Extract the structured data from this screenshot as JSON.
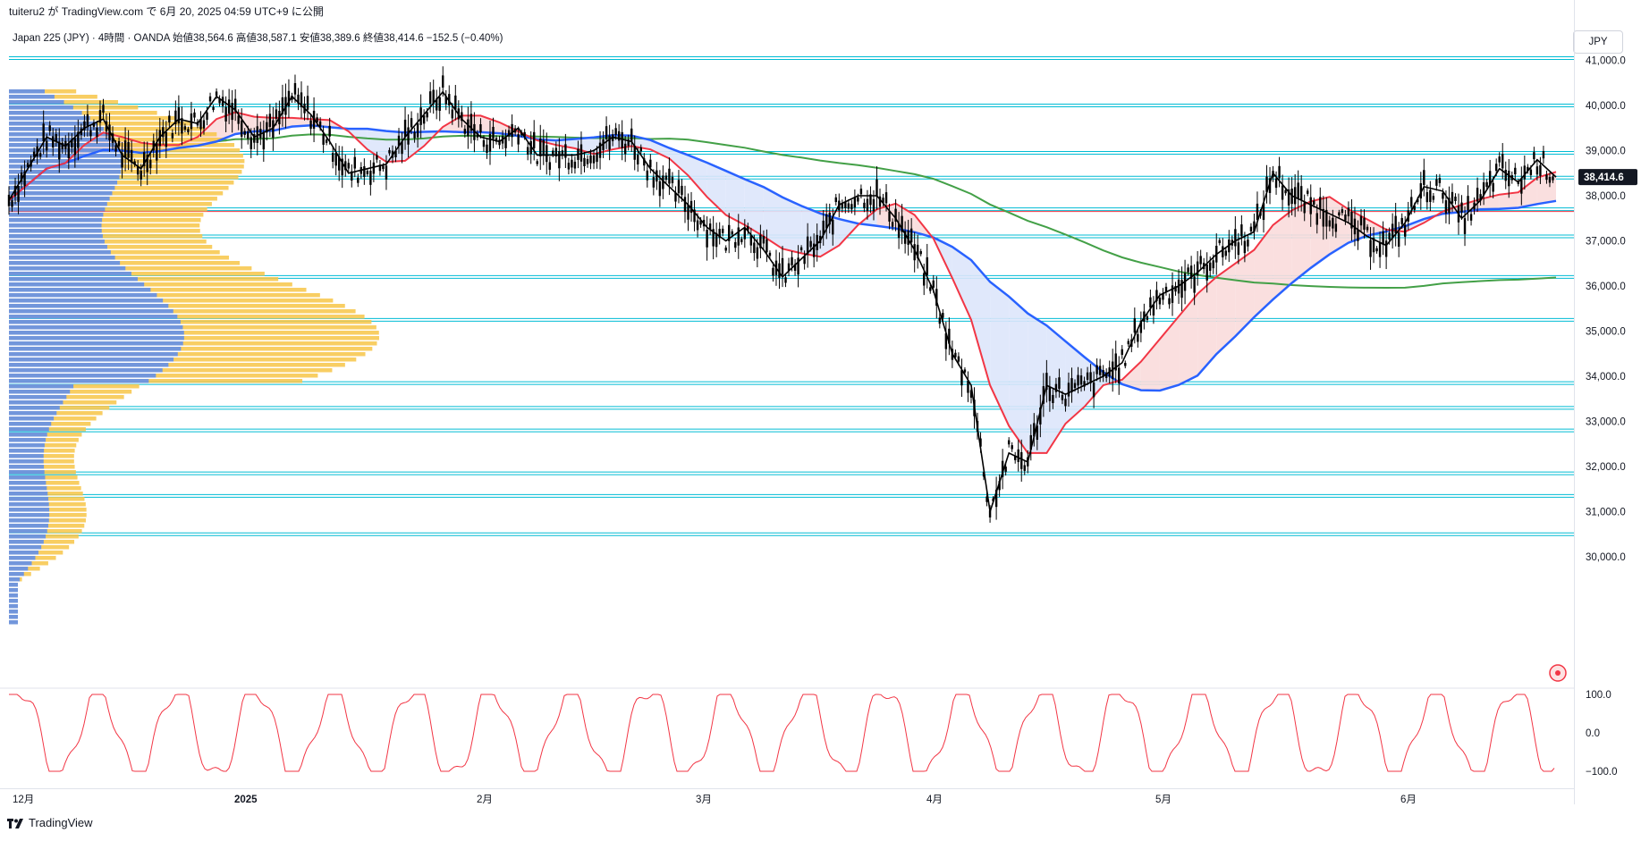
{
  "header": {
    "publish_text": "tuiteru2 が TradingView.com で 6月 20, 2025 04:59 UTC+9 に公開"
  },
  "legend": {
    "text": "Japan 225 (JPY) · 4時間 · OANDA  始値38,564.6  高値38,587.1  安値38,389.6  終値38,414.6  −152.5 (−0.40%)"
  },
  "currency_button": "JPY",
  "price_axis": {
    "labels": [
      "41,000.0",
      "40,000.0",
      "39,000.0",
      "38,000.0",
      "37,000.0",
      "36,000.0",
      "35,000.0",
      "34,000.0",
      "33,000.0",
      "32,000.0",
      "31,000.0",
      "30,000.0"
    ],
    "last_price_label": "38,414.6"
  },
  "oscillator_axis": {
    "labels": [
      "100.0",
      "0.0",
      "−100.0"
    ]
  },
  "time_axis": {
    "labels": [
      "12月",
      "2025",
      "2月",
      "3月",
      "4月",
      "5月",
      "6月"
    ]
  },
  "footer": {
    "brand": "TradingView"
  },
  "colors": {
    "candles": "#000000",
    "ma_fast": "#f23645",
    "ma_mid": "#2962ff",
    "ma_slow": "#43a047",
    "horizontal_levels": "#00bcd4",
    "volume_profile_up": "#5b8cf0",
    "volume_profile_down": "#f7c548",
    "poc_line": "#f23645",
    "oscillator": "#f23645",
    "fill_red": "#fadcdc",
    "fill_blue": "#dde6fb"
  },
  "chart_data": {
    "type": "line",
    "instrument": "Japan 225 (JPY)",
    "timeframe": "4時間",
    "source": "OANDA",
    "ohlc_last": {
      "open": 38564.6,
      "high": 38587.1,
      "low": 38389.6,
      "close": 38414.6,
      "change": -152.5,
      "change_pct": -0.4
    },
    "ylim": [
      29500,
      41300
    ],
    "x_ticks": [
      "12月",
      "2025",
      "2月",
      "3月",
      "4月",
      "5月",
      "6月"
    ],
    "price_series": [
      [
        "11-28",
        37900
      ],
      [
        "12-02",
        38600
      ],
      [
        "12-05",
        39300
      ],
      [
        "12-10",
        39100
      ],
      [
        "12-13",
        39500
      ],
      [
        "12-16",
        39700
      ],
      [
        "12-19",
        38900
      ],
      [
        "12-23",
        38600
      ],
      [
        "12-26",
        39300
      ],
      [
        "12-30",
        39700
      ],
      [
        "01-03",
        39600
      ],
      [
        "01-06",
        40200
      ],
      [
        "01-08",
        39900
      ],
      [
        "01-10",
        39300
      ],
      [
        "01-14",
        39500
      ],
      [
        "01-16",
        40200
      ],
      [
        "01-18",
        39800
      ],
      [
        "01-21",
        39200
      ],
      [
        "01-24",
        38500
      ],
      [
        "01-27",
        38600
      ],
      [
        "01-30",
        38700
      ],
      [
        "02-03",
        39300
      ],
      [
        "02-05",
        39800
      ],
      [
        "02-07",
        40300
      ],
      [
        "02-10",
        39700
      ],
      [
        "02-12",
        39300
      ],
      [
        "02-14",
        39200
      ],
      [
        "02-17",
        39500
      ],
      [
        "02-19",
        38900
      ],
      [
        "02-21",
        38900
      ],
      [
        "02-25",
        38900
      ],
      [
        "02-28",
        39000
      ],
      [
        "03-03",
        39300
      ],
      [
        "03-05",
        39200
      ],
      [
        "03-07",
        38600
      ],
      [
        "03-10",
        38200
      ],
      [
        "03-12",
        37800
      ],
      [
        "03-14",
        37300
      ],
      [
        "03-17",
        37000
      ],
      [
        "03-19",
        37300
      ],
      [
        "03-21",
        36800
      ],
      [
        "03-24",
        36200
      ],
      [
        "03-26",
        36600
      ],
      [
        "03-28",
        37000
      ],
      [
        "03-31",
        37800
      ],
      [
        "04-02",
        38000
      ],
      [
        "04-04",
        38000
      ],
      [
        "04-07",
        37500
      ],
      [
        "04-09",
        36800
      ],
      [
        "04-11",
        35900
      ],
      [
        "04-14",
        34500
      ],
      [
        "04-16",
        33800
      ],
      [
        "04-18",
        31000
      ],
      [
        "04-21",
        32300
      ],
      [
        "04-23",
        32100
      ],
      [
        "04-25",
        33800
      ],
      [
        "04-28",
        33600
      ],
      [
        "04-30",
        33800
      ],
      [
        "05-02",
        34000
      ],
      [
        "05-05",
        34300
      ],
      [
        "05-07",
        35200
      ],
      [
        "05-09",
        35800
      ],
      [
        "05-12",
        36000
      ],
      [
        "05-14",
        36300
      ],
      [
        "05-16",
        36700
      ],
      [
        "05-19",
        37000
      ],
      [
        "05-21",
        37200
      ],
      [
        "05-23",
        38500
      ],
      [
        "05-26",
        38000
      ],
      [
        "05-28",
        37800
      ],
      [
        "05-30",
        37600
      ],
      [
        "06-02",
        37400
      ],
      [
        "06-04",
        37100
      ],
      [
        "06-06",
        36900
      ],
      [
        "06-09",
        37400
      ],
      [
        "06-11",
        38200
      ],
      [
        "06-13",
        38100
      ],
      [
        "06-16",
        37500
      ],
      [
        "06-18",
        37900
      ],
      [
        "06-20",
        38600
      ],
      [
        "06-23",
        38300
      ],
      [
        "06-25",
        38800
      ],
      [
        "06-27",
        38414.6
      ]
    ],
    "horizontal_levels": [
      41050,
      40000,
      38950,
      38400,
      37700,
      37100,
      36200,
      35250,
      33850,
      33300,
      32800,
      31850,
      31350,
      30500
    ],
    "oscillator": {
      "ylim": [
        -100,
        100
      ],
      "ticks": [
        100,
        0,
        -100
      ]
    }
  }
}
